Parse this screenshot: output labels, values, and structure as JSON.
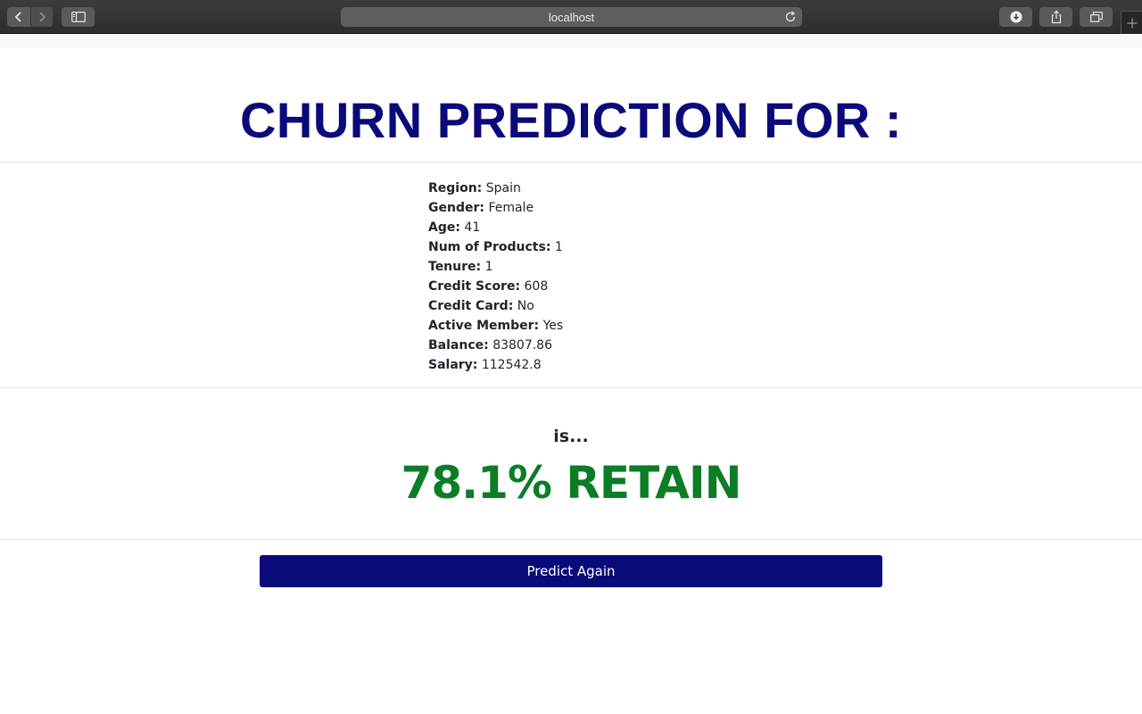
{
  "browser": {
    "url": "localhost"
  },
  "page": {
    "title": "CHURN PREDICTION FOR :",
    "details": [
      {
        "label": "Region:",
        "value": "Spain"
      },
      {
        "label": "Gender:",
        "value": "Female"
      },
      {
        "label": "Age:",
        "value": "41"
      },
      {
        "label": "Num of Products:",
        "value": "1"
      },
      {
        "label": "Tenure:",
        "value": "1"
      },
      {
        "label": "Credit Score:",
        "value": "608"
      },
      {
        "label": "Credit Card:",
        "value": "No"
      },
      {
        "label": "Active Member:",
        "value": "Yes"
      },
      {
        "label": "Balance:",
        "value": "83807.86"
      },
      {
        "label": "Salary:",
        "value": "112542.8"
      }
    ],
    "is_text": "is...",
    "result": "78.1% RETAIN",
    "predict_again_label": "Predict Again"
  },
  "colors": {
    "title": "#0a0a7a",
    "result": "#0b7d25",
    "button": "#0a0a7a"
  }
}
